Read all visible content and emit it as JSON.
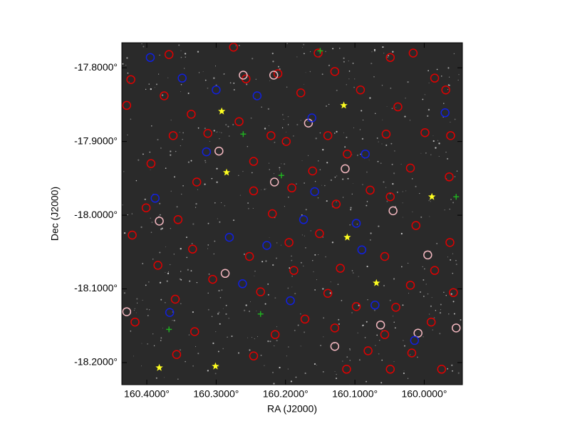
{
  "chart_data": {
    "type": "scatter",
    "xlabel": "RA (J2000)",
    "ylabel": "Dec (J2000)",
    "xlim": [
      160.436,
      159.945
    ],
    "ylim": [
      -18.23,
      -17.766
    ],
    "xticks": [
      {
        "value": 160.4,
        "label": "160.4000°"
      },
      {
        "value": 160.3,
        "label": "160.3000°"
      },
      {
        "value": 160.2,
        "label": "160.2000°"
      },
      {
        "value": 160.1,
        "label": "160.1000°"
      },
      {
        "value": 160.0,
        "label": "160.0000°"
      }
    ],
    "yticks": [
      {
        "value": -17.8,
        "label": "-17.8000°"
      },
      {
        "value": -17.9,
        "label": "-17.9000°"
      },
      {
        "value": -18.0,
        "label": "-18.0000°"
      },
      {
        "value": -18.1,
        "label": "-18.1000°"
      },
      {
        "value": -18.2,
        "label": "-18.2000°"
      }
    ],
    "background": "#2a2a2a",
    "series": [
      {
        "color": "#e00000",
        "marker": "circle",
        "x": [
          160.368,
          160.423,
          160.375,
          160.336,
          160.362,
          160.312,
          160.394,
          160.328,
          160.401,
          160.355,
          160.421,
          160.334,
          160.384,
          160.305,
          160.359,
          160.417,
          160.331,
          160.357,
          160.275,
          160.257,
          160.211,
          160.267,
          160.221,
          160.246,
          160.199,
          160.191,
          160.246,
          160.219,
          160.195,
          160.252,
          160.188,
          160.236,
          160.172,
          160.215,
          160.246,
          160.153,
          160.129,
          160.178,
          160.092,
          160.139,
          160.111,
          160.161,
          160.078,
          160.127,
          160.151,
          160.121,
          160.139,
          160.098,
          160.129,
          160.081,
          160.112,
          160.049,
          160.016,
          159.985,
          159.969,
          160.038,
          159.999,
          160.055,
          159.962,
          160.02,
          159.964,
          160.049,
          160.012,
          159.963,
          160.057,
          159.985,
          160.02,
          159.958,
          160.041,
          159.99,
          160.057,
          160.018,
          159.975,
          160.049,
          160.429
        ],
        "y": [
          -17.782,
          -17.816,
          -17.838,
          -17.863,
          -17.892,
          -17.889,
          -17.93,
          -17.955,
          -17.99,
          -18.006,
          -18.027,
          -18.046,
          -18.068,
          -18.087,
          -18.114,
          -18.145,
          -18.158,
          -18.189,
          -17.772,
          -17.815,
          -17.808,
          -17.873,
          -17.892,
          -17.927,
          -17.9,
          -17.963,
          -17.967,
          -17.998,
          -18.037,
          -18.056,
          -18.075,
          -18.104,
          -18.141,
          -18.162,
          -18.191,
          -17.78,
          -17.805,
          -17.834,
          -17.83,
          -17.892,
          -17.917,
          -17.94,
          -17.966,
          -17.985,
          -18.025,
          -18.072,
          -18.106,
          -18.124,
          -18.153,
          -18.184,
          -18.209,
          -17.786,
          -17.78,
          -17.814,
          -17.83,
          -17.853,
          -17.888,
          -17.89,
          -17.892,
          -17.936,
          -17.948,
          -17.975,
          -18.014,
          -18.037,
          -18.056,
          -18.075,
          -18.095,
          -18.105,
          -18.125,
          -18.145,
          -18.162,
          -18.187,
          -18.209,
          -18.209,
          -17.851
        ]
      },
      {
        "color": "#f4b8c0",
        "marker": "circle",
        "x": [
          160.261,
          160.217,
          160.296,
          160.216,
          160.382,
          160.287,
          160.429,
          160.129,
          160.063,
          160.045,
          159.995,
          160.114,
          160.009,
          159.954,
          160.167
        ],
        "y": [
          -17.81,
          -17.81,
          -17.913,
          -17.955,
          -18.008,
          -18.079,
          -18.131,
          -18.178,
          -18.149,
          -17.994,
          -18.054,
          -17.937,
          -18.16,
          -18.153,
          -17.875
        ]
      },
      {
        "color": "#1020e0",
        "marker": "circle",
        "x": [
          160.395,
          160.349,
          160.3,
          160.241,
          160.162,
          160.314,
          160.085,
          160.388,
          160.158,
          160.174,
          160.098,
          160.281,
          160.227,
          160.09,
          160.367,
          160.193,
          160.071,
          160.014,
          159.97,
          160.262
        ],
        "y": [
          -17.786,
          -17.814,
          -17.83,
          -17.838,
          -17.868,
          -17.914,
          -17.917,
          -17.977,
          -17.968,
          -18.006,
          -18.011,
          -18.03,
          -18.041,
          -18.047,
          -18.132,
          -18.116,
          -18.122,
          -18.17,
          -17.861,
          -18.093
        ]
      },
      {
        "color": "#20b020",
        "marker": "plus",
        "x": [
          160.15,
          160.261,
          160.206,
          159.954,
          160.236,
          160.368
        ],
        "y": [
          -17.777,
          -17.89,
          -17.946,
          -17.975,
          -18.134,
          -18.155
        ]
      },
      {
        "color": "#ffff20",
        "marker": "star",
        "x": [
          160.292,
          160.285,
          160.116,
          160.111,
          159.989,
          160.069,
          160.382,
          160.301
        ],
        "y": [
          -17.859,
          -17.942,
          -17.851,
          -18.03,
          -17.975,
          -18.092,
          -18.207,
          -18.205
        ]
      }
    ]
  }
}
